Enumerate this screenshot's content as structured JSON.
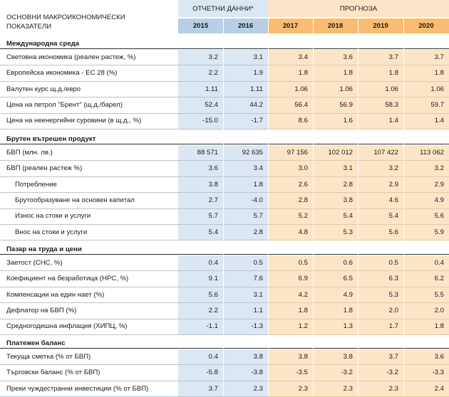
{
  "header": {
    "indicators_label_line1": "ОСНОВНИ МАКРОИКОНОМИЧЕСКИ",
    "indicators_label_line2": "ПОКАЗАТЕЛИ",
    "reported_label": "ОТЧЕТНИ ДАННИ*",
    "forecast_label": "ПРОГНОЗА",
    "years": [
      "2015",
      "2016",
      "2017",
      "2018",
      "2019",
      "2020"
    ]
  },
  "sections": [
    {
      "title": "Международна среда",
      "rows": [
        {
          "label": "Световна икономика (реален растеж, %)",
          "indent": 0,
          "values": [
            "3.2",
            "3.1",
            "3.4",
            "3.6",
            "3.7",
            "3.7"
          ]
        },
        {
          "label": "Европейска икономика - ЕС 28 (%)",
          "indent": 0,
          "values": [
            "2.2",
            "1.9",
            "1.8",
            "1.8",
            "1.8",
            "1.8"
          ]
        },
        {
          "label": "Валутен курс щ.д./евро",
          "indent": 0,
          "values": [
            "1.11",
            "1.11",
            "1.06",
            "1.06",
            "1.06",
            "1.06"
          ]
        },
        {
          "label": "Цена на петрол \"Брент\" (щ.д./барел)",
          "indent": 0,
          "values": [
            "52.4",
            "44.2",
            "56.4",
            "56.9",
            "58.3",
            "59.7"
          ]
        },
        {
          "label": "Цена на неенергийни суровини (в щ.д., %)",
          "indent": 0,
          "values": [
            "-15.0",
            "-1.7",
            "8.6",
            "1.6",
            "1.4",
            "1.4"
          ]
        }
      ]
    },
    {
      "title": "Брутен вътрешен продукт",
      "rows": [
        {
          "label": "БВП (млн. лв.)",
          "indent": 0,
          "values": [
            "88 571",
            "92 635",
            "97 156",
            "102 012",
            "107 422",
            "113 062"
          ]
        },
        {
          "label": "БВП (реален растеж %)",
          "indent": 0,
          "values": [
            "3.6",
            "3.4",
            "3.0",
            "3.1",
            "3.2",
            "3.2"
          ]
        },
        {
          "label": "Потребление",
          "indent": 1,
          "values": [
            "3.8",
            "1.8",
            "2.6",
            "2.8",
            "2.9",
            "2.9"
          ]
        },
        {
          "label": "Брутообразуване на основен капитал",
          "indent": 1,
          "values": [
            "2.7",
            "-4.0",
            "2.8",
            "3.8",
            "4.6",
            "4.9"
          ]
        },
        {
          "label": "Износ на стоки и услуги",
          "indent": 1,
          "values": [
            "5.7",
            "5.7",
            "5.2",
            "5.4",
            "5.4",
            "5.6"
          ]
        },
        {
          "label": "Внос на стоки и услуги",
          "indent": 1,
          "values": [
            "5.4",
            "2.8",
            "4.8",
            "5.3",
            "5.6",
            "5.9"
          ]
        }
      ]
    },
    {
      "title": "Пазар на труда и цени",
      "rows": [
        {
          "label": "Заетост (СНС, %)",
          "indent": 0,
          "values": [
            "0.4",
            "0.5",
            "0.5",
            "0.6",
            "0.5",
            "0.4"
          ]
        },
        {
          "label": "Коефициент на безработица (НРС, %)",
          "indent": 0,
          "values": [
            "9.1",
            "7.6",
            "6.9",
            "6.5",
            "6.3",
            "6.2"
          ]
        },
        {
          "label": "Компенсации на един нает (%)",
          "indent": 0,
          "values": [
            "5.6",
            "3.1",
            "4.2",
            "4.9",
            "5.3",
            "5.5"
          ]
        },
        {
          "label": "Дефлатор на БВП (%)",
          "indent": 0,
          "values": [
            "2.2",
            "1.1",
            "1.8",
            "1.8",
            "2.0",
            "2.0"
          ]
        },
        {
          "label": "Средногодишна инфлация (ХИПЦ, %)",
          "indent": 0,
          "values": [
            "-1.1",
            "-1.3",
            "1.2",
            "1.3",
            "1.7",
            "1.8"
          ]
        }
      ]
    },
    {
      "title": "Платежен баланс",
      "rows": [
        {
          "label": "Текуща сметка (% от БВП)",
          "indent": 0,
          "values": [
            "0.4",
            "3.8",
            "3.8",
            "3.8",
            "3.7",
            "3.6"
          ]
        },
        {
          "label": "Търговски баланс (% от БВП)",
          "indent": 0,
          "values": [
            "-5.8",
            "-3.8",
            "-3.5",
            "-3.2",
            "-3.2",
            "-3.3"
          ]
        },
        {
          "label": "Преки чуждестранни инвестиции (% от БВП)",
          "indent": 0,
          "values": [
            "3.7",
            "2.3",
            "2.3",
            "2.3",
            "2.3",
            "2.4"
          ]
        }
      ]
    }
  ],
  "colors": {
    "historical_fill": "#dbe7f3",
    "historical_header": "#b8cfe6",
    "forecast_fill": "#fce5c6",
    "forecast_header": "#f9bc72"
  }
}
